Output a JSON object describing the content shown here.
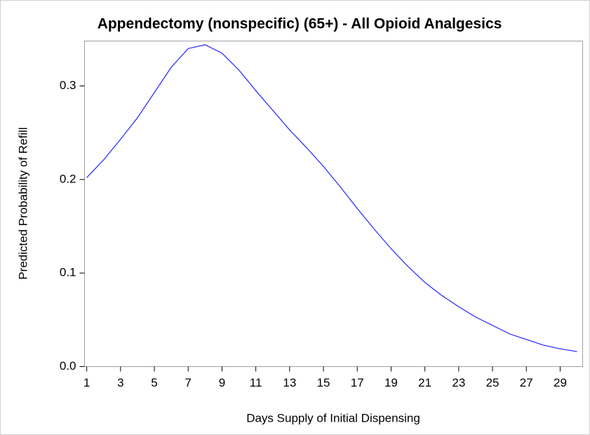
{
  "chart_data": {
    "type": "line",
    "title": "Appendectomy (nonspecific) (65+) - All Opioid Analgesics",
    "x_label": "Days Supply of Initial Dispensing",
    "y_label": "Predicted Probability of Refill",
    "x": [
      1,
      2,
      3,
      4,
      5,
      6,
      7,
      8,
      9,
      10,
      11,
      12,
      13,
      14,
      15,
      16,
      17,
      18,
      19,
      20,
      21,
      22,
      23,
      24,
      25,
      26,
      27,
      28,
      29,
      30
    ],
    "series": [
      {
        "name": "Predicted Probability of Refill",
        "color": "#3333ff",
        "values": [
          0.202,
          0.221,
          0.243,
          0.266,
          0.293,
          0.32,
          0.34,
          0.344,
          0.335,
          0.317,
          0.295,
          0.274,
          0.253,
          0.234,
          0.214,
          0.192,
          0.169,
          0.147,
          0.126,
          0.107,
          0.09,
          0.076,
          0.064,
          0.053,
          0.044,
          0.035,
          0.029,
          0.023,
          0.019,
          0.016
        ]
      }
    ],
    "xlim": [
      0.87,
      30.33
    ],
    "xticks": [
      1,
      3,
      5,
      7,
      9,
      11,
      13,
      15,
      17,
      19,
      21,
      23,
      25,
      27,
      29
    ],
    "ylim": [
      0,
      0.348
    ],
    "yticks": [
      {
        "value": 0,
        "label": "0.0"
      },
      0.1,
      0.2,
      0.3
    ]
  }
}
